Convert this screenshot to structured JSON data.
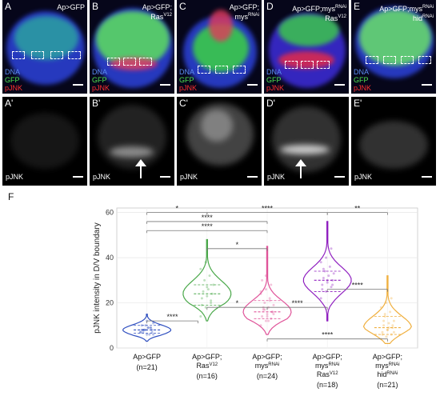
{
  "panels": [
    {
      "letter": "A",
      "prime": "A'",
      "genotype_lines": [
        [
          "Ap>GFP",
          ""
        ]
      ]
    },
    {
      "letter": "B",
      "prime": "B'",
      "genotype_lines": [
        [
          "Ap>GFP;",
          ""
        ],
        [
          "Ras",
          "V12"
        ]
      ]
    },
    {
      "letter": "C",
      "prime": "C'",
      "genotype_lines": [
        [
          "Ap>GFP;",
          ""
        ],
        [
          "mys",
          "RNAi"
        ]
      ]
    },
    {
      "letter": "D",
      "prime": "D'",
      "genotype_lines": [
        [
          "Ap>GFP;mys",
          "RNAi"
        ],
        [
          "Ras",
          "V12"
        ]
      ]
    },
    {
      "letter": "E",
      "prime": "E'",
      "genotype_lines": [
        [
          "Ap>GFP;mys",
          "RNAi"
        ],
        [
          "hid",
          "RNAi"
        ]
      ]
    }
  ],
  "stain_labels": {
    "dna": "DNA",
    "gfp": "GFP",
    "pjnk": "pJNK"
  },
  "colors": {
    "dna": "#2f6bd8",
    "gfp": "#3ddc3d",
    "pjnk": "#e21c1c"
  },
  "figure_f_label": "F",
  "chart_data": {
    "type": "violin",
    "ylabel": "pJNK intensity in D/V boundary",
    "ylim": [
      0,
      62
    ],
    "yticks": [
      0,
      20,
      40,
      60
    ],
    "grid": true,
    "groups": [
      {
        "lines": [
          [
            "Ap>GFP",
            ""
          ]
        ],
        "n": "(n=21)",
        "color": "#3050c0",
        "min": 3,
        "max": 15,
        "median": 8,
        "q1": 6.5,
        "q3": 10,
        "points": [
          7,
          8,
          9,
          10,
          6,
          8,
          7,
          9,
          11,
          8,
          6,
          7,
          10,
          9,
          8,
          12,
          7,
          8,
          9,
          6,
          8
        ]
      },
      {
        "lines": [
          [
            "Ap>GFP;",
            ""
          ],
          [
            "Ras",
            "V12"
          ]
        ],
        "n": "(n=16)",
        "color": "#4aa84a",
        "min": 12,
        "max": 48,
        "median": 24,
        "q1": 19,
        "q3": 28,
        "points": [
          14,
          18,
          20,
          22,
          23,
          24,
          25,
          26,
          28,
          30,
          32,
          35,
          38,
          21,
          19,
          27
        ]
      },
      {
        "lines": [
          [
            "Ap>GFP;",
            ""
          ],
          [
            "mys",
            "RNAi"
          ]
        ],
        "n": "(n=24)",
        "color": "#e0559a",
        "min": 6,
        "max": 45,
        "median": 16,
        "q1": 13,
        "q3": 21,
        "points": [
          10,
          12,
          13,
          14,
          15,
          16,
          17,
          18,
          19,
          20,
          22,
          24,
          26,
          28,
          30,
          14,
          16,
          18,
          12,
          15,
          17,
          21,
          25,
          32
        ]
      },
      {
        "lines": [
          [
            "Ap>GFP;",
            ""
          ],
          [
            "mys",
            "RNAi"
          ],
          [
            "Ras",
            "V12"
          ]
        ],
        "n": "(n=18)",
        "color": "#9020c0",
        "min": 12,
        "max": 56,
        "median": 30,
        "q1": 25,
        "q3": 34,
        "points": [
          22,
          25,
          27,
          28,
          29,
          30,
          31,
          32,
          33,
          34,
          36,
          38,
          40,
          44,
          26,
          30,
          28,
          35
        ]
      },
      {
        "lines": [
          [
            "Ap>GFP;",
            ""
          ],
          [
            "mys",
            "RNAi"
          ],
          [
            "hid",
            "RNAi"
          ]
        ],
        "n": "(n=21)",
        "color": "#f0b040",
        "min": 2,
        "max": 32,
        "median": 9,
        "q1": 6,
        "q3": 14,
        "points": [
          4,
          5,
          6,
          7,
          8,
          9,
          10,
          11,
          12,
          14,
          16,
          18,
          20,
          22,
          6,
          8,
          10,
          12,
          9,
          7,
          15
        ]
      }
    ],
    "comparisons": [
      {
        "a": 0,
        "b": 1,
        "y": 60,
        "label": "*"
      },
      {
        "a": 1,
        "b": 3,
        "y": 60,
        "label": "****"
      },
      {
        "a": 3,
        "b": 4,
        "y": 60,
        "label": "**"
      },
      {
        "a": 0,
        "b": 2,
        "y": 56,
        "label": "****"
      },
      {
        "a": 0,
        "b": 2,
        "y": 52,
        "label": "****"
      },
      {
        "a": 1,
        "b": 2,
        "y": 44,
        "label": "*"
      },
      {
        "a": 0,
        "b": 0.85,
        "y": 12,
        "label": "****",
        "side": "right"
      },
      {
        "a": 1,
        "b": 2,
        "y": 18,
        "label": "*"
      },
      {
        "a": 2,
        "b": 3,
        "y": 18,
        "label": "****"
      },
      {
        "a": 3,
        "b": 4,
        "y": 26,
        "label": "****",
        "side": "right"
      },
      {
        "a": 2,
        "b": 4,
        "y": 4,
        "label": "****"
      }
    ]
  }
}
